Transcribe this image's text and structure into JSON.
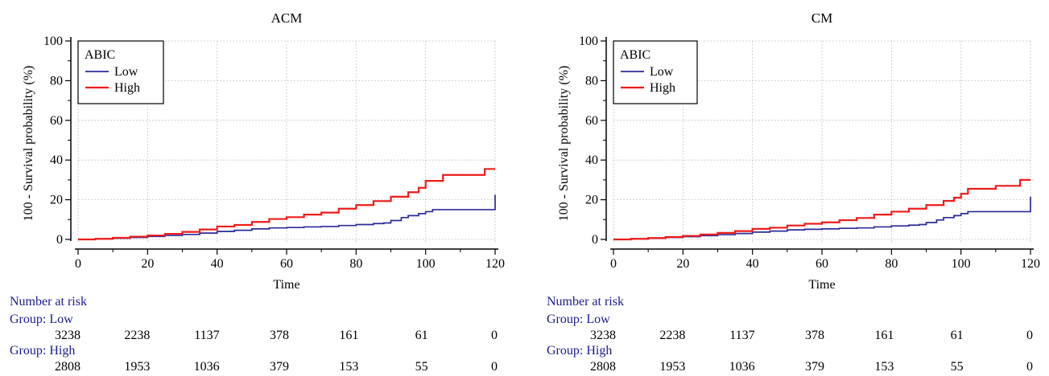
{
  "colors": {
    "low": "#2b2b9a",
    "high": "#ee1c1c",
    "grid": "#c8c8c8",
    "risk_text": "#1b1b8f"
  },
  "chart_data": [
    {
      "type": "line",
      "title": "ACM",
      "xlabel": "Time",
      "ylabel": "100 - Survival probability (%)",
      "xlim": [
        0,
        120
      ],
      "ylim": [
        0,
        100
      ],
      "xticks": [
        0,
        20,
        40,
        60,
        80,
        100,
        120
      ],
      "yticks": [
        0,
        20,
        40,
        60,
        80,
        100
      ],
      "grid": true,
      "legend": {
        "title": "ABIC",
        "placement": "top-left",
        "entries": [
          "Low",
          "High"
        ]
      },
      "series": [
        {
          "name": "Low",
          "color": "#2b2b9a",
          "x": [
            0,
            5,
            10,
            15,
            20,
            25,
            30,
            35,
            40,
            45,
            50,
            55,
            60,
            65,
            70,
            75,
            80,
            85,
            88,
            90,
            93,
            95,
            98,
            100,
            102,
            105,
            110,
            115,
            119.5,
            120
          ],
          "y": [
            0,
            0.3,
            0.6,
            1.0,
            1.5,
            2.0,
            2.5,
            3.2,
            4.0,
            4.6,
            5.3,
            5.8,
            6.0,
            6.3,
            6.5,
            7.0,
            7.5,
            8.0,
            8.3,
            9.5,
            11.0,
            12.0,
            13.0,
            14.0,
            15.0,
            15.0,
            15.0,
            15.0,
            15.0,
            22.5
          ]
        },
        {
          "name": "High",
          "color": "#ee1c1c",
          "x": [
            0,
            5,
            10,
            15,
            20,
            25,
            30,
            35,
            40,
            45,
            50,
            55,
            60,
            65,
            70,
            75,
            80,
            85,
            90,
            95,
            98,
            100,
            102,
            104,
            105,
            110,
            115,
            117,
            120
          ],
          "y": [
            0,
            0.3,
            0.8,
            1.4,
            2.0,
            2.8,
            3.8,
            5.0,
            6.5,
            7.3,
            8.8,
            10.3,
            11.2,
            12.5,
            13.5,
            15.5,
            17.3,
            19.3,
            21.5,
            23.8,
            26.0,
            29.5,
            29.5,
            29.5,
            32.5,
            32.5,
            32.5,
            35.5,
            35.5
          ]
        }
      ],
      "risk_table": {
        "header": "Number at risk",
        "groups": [
          {
            "label": "Group: Low",
            "values": [
              "3238",
              "2238",
              "1137",
              "378",
              "161",
              "61",
              "0"
            ]
          },
          {
            "label": "Group: High",
            "values": [
              "2808",
              "1953",
              "1036",
              "379",
              "153",
              "55",
              "0"
            ]
          }
        ]
      }
    },
    {
      "type": "line",
      "title": "CM",
      "xlabel": "Time",
      "ylabel": "100 - Survival probability (%)",
      "xlim": [
        0,
        120
      ],
      "ylim": [
        0,
        100
      ],
      "xticks": [
        0,
        20,
        40,
        60,
        80,
        100,
        120
      ],
      "yticks": [
        0,
        20,
        40,
        60,
        80,
        100
      ],
      "grid": true,
      "legend": {
        "title": "ABIC",
        "placement": "top-left",
        "entries": [
          "Low",
          "High"
        ]
      },
      "series": [
        {
          "name": "Low",
          "color": "#2b2b9a",
          "x": [
            0,
            5,
            10,
            15,
            20,
            25,
            30,
            35,
            40,
            45,
            50,
            55,
            60,
            65,
            70,
            75,
            80,
            85,
            88,
            90,
            93,
            95,
            98,
            100,
            102,
            105,
            110,
            115,
            119.5,
            120
          ],
          "y": [
            0,
            0.3,
            0.6,
            1.0,
            1.4,
            1.9,
            2.4,
            3.0,
            3.7,
            4.2,
            4.8,
            5.1,
            5.3,
            5.6,
            5.8,
            6.3,
            6.8,
            7.2,
            7.5,
            8.5,
            9.8,
            11.0,
            12.0,
            13.0,
            14.0,
            14.0,
            14.0,
            14.0,
            14.0,
            21.5
          ]
        },
        {
          "name": "High",
          "color": "#ee1c1c",
          "x": [
            0,
            5,
            10,
            15,
            20,
            25,
            30,
            35,
            40,
            45,
            50,
            55,
            60,
            65,
            70,
            75,
            80,
            85,
            90,
            95,
            98,
            100,
            102,
            105,
            110,
            115,
            117,
            120
          ],
          "y": [
            0,
            0.3,
            0.7,
            1.2,
            1.8,
            2.5,
            3.3,
            4.2,
            5.3,
            5.9,
            7.0,
            7.9,
            8.6,
            9.7,
            10.8,
            12.5,
            14.0,
            15.5,
            17.3,
            19.4,
            21.0,
            23.0,
            25.5,
            25.5,
            27.0,
            27.0,
            30.0,
            30.0
          ]
        }
      ],
      "risk_table": {
        "header": "Number at risk",
        "groups": [
          {
            "label": "Group: Low",
            "values": [
              "3238",
              "2238",
              "1137",
              "378",
              "161",
              "61",
              "0"
            ]
          },
          {
            "label": "Group: High",
            "values": [
              "2808",
              "1953",
              "1036",
              "379",
              "153",
              "55",
              "0"
            ]
          }
        ]
      }
    }
  ]
}
